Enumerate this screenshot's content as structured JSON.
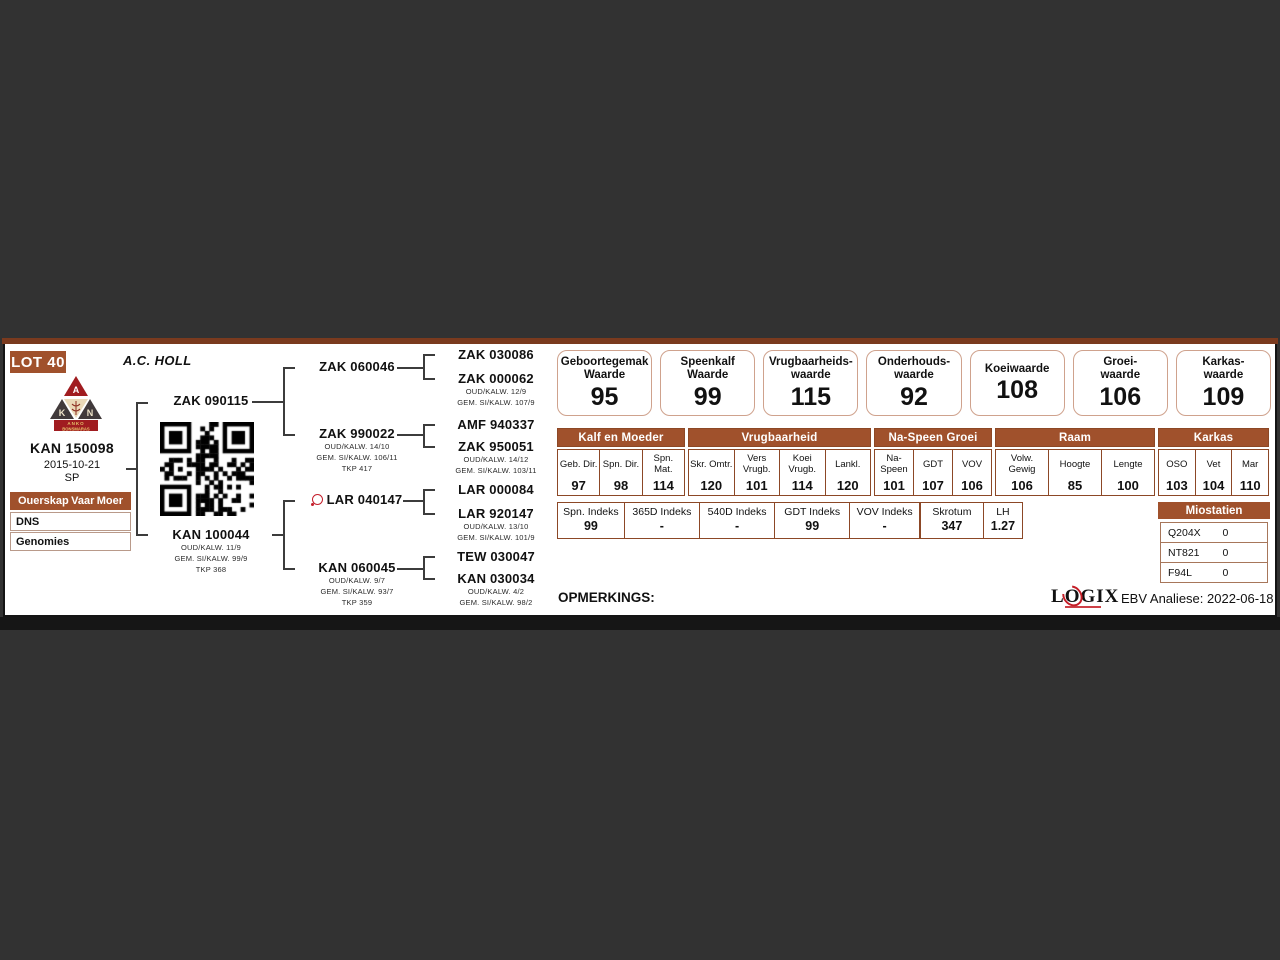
{
  "header": {
    "lot": "LOT 40",
    "owner": "A.C. HOLL"
  },
  "logo": {
    "letter_a": "A",
    "letter_k": "K",
    "letter_n": "N",
    "name_line1": "ANKO",
    "name_line2": "BONSMARAS"
  },
  "animal": {
    "id": "KAN 150098",
    "birth_date": "2015-10-21",
    "code": "SP"
  },
  "parentage": {
    "header_col1": "Ouerskap",
    "header_col2": "Vaar",
    "header_col3": "Moer",
    "rows": [
      {
        "label": "DNS"
      },
      {
        "label": "Genomies"
      }
    ]
  },
  "pedigree": {
    "sire": {
      "id": "ZAK 090115"
    },
    "dam": {
      "id": "KAN 100044",
      "details": [
        "OUD/KALW. 11/9",
        "GEM. SI/KALW. 99/9",
        "TKP 368"
      ]
    },
    "gen2": [
      {
        "id": "ZAK 060046"
      },
      {
        "id": "ZAK 990022",
        "details": [
          "OUD/KALW. 14/10",
          "GEM. SI/KALW. 106/11",
          "TKP 417"
        ]
      },
      {
        "id": "LAR 040147"
      },
      {
        "id": "KAN 060045",
        "details": [
          "OUD/KALW. 9/7",
          "GEM. SI/KALW. 93/7",
          "TKP 359"
        ]
      }
    ],
    "gen3": [
      {
        "id": "ZAK 030086"
      },
      {
        "id": "ZAK 000062",
        "details": [
          "OUD/KALW. 12/9",
          "GEM. SI/KALW. 107/9"
        ]
      },
      {
        "id": "AMF 940337"
      },
      {
        "id": "ZAK 950051",
        "details": [
          "OUD/KALW. 14/12",
          "GEM. SI/KALW. 103/11"
        ]
      },
      {
        "id": "LAR 000084"
      },
      {
        "id": "LAR 920147",
        "details": [
          "OUD/KALW. 13/10",
          "GEM. SI/KALW. 101/9"
        ]
      },
      {
        "id": "TEW 030047"
      },
      {
        "id": "KAN 030034",
        "details": [
          "OUD/KALW. 4/2",
          "GEM. SI/KALW. 98/2"
        ]
      }
    ]
  },
  "value_boxes": [
    {
      "line1": "Geboortegemak",
      "line2": "Waarde",
      "value": "95"
    },
    {
      "line1": "Speenkalf",
      "line2": "Waarde",
      "value": "99"
    },
    {
      "line1": "Vrugbaarheids-",
      "line2": "waarde",
      "value": "115"
    },
    {
      "line1": "Onderhouds-",
      "line2": "waarde",
      "value": "92"
    },
    {
      "line1": "Koeiwaarde",
      "line2": "",
      "value": "108"
    },
    {
      "line1": "Groei-",
      "line2": "waarde",
      "value": "106"
    },
    {
      "line1": "Karkas-",
      "line2": "waarde",
      "value": "109"
    }
  ],
  "ebv_table": {
    "groups": [
      {
        "name": "Kalf en Moeder",
        "columns": [
          {
            "label": "Geb. Dir.",
            "value": "97"
          },
          {
            "label": "Spn. Dir.",
            "value": "98"
          },
          {
            "label": "Spn. Mat.",
            "value": "114"
          }
        ]
      },
      {
        "name": "Vrugbaarheid",
        "columns": [
          {
            "label": "Skr. Omtr.",
            "value": "120"
          },
          {
            "label": "Vers Vrugb.",
            "value": "101"
          },
          {
            "label": "Koei Vrugb.",
            "value": "114"
          },
          {
            "label": "Lankl.",
            "value": "120"
          }
        ]
      },
      {
        "name": "Na-Speen Groei",
        "columns": [
          {
            "label": "Na- Speen",
            "value": "101"
          },
          {
            "label": "GDT",
            "value": "107"
          },
          {
            "label": "VOV",
            "value": "106"
          }
        ]
      },
      {
        "name": "Raam",
        "columns": [
          {
            "label": "Volw. Gewig",
            "value": "106"
          },
          {
            "label": "Hoogte",
            "value": "85"
          },
          {
            "label": "Lengte",
            "value": "100"
          }
        ]
      },
      {
        "name": "Karkas",
        "columns": [
          {
            "label": "OSO",
            "value": "103"
          },
          {
            "label": "Vet",
            "value": "104"
          },
          {
            "label": "Mar",
            "value": "110"
          }
        ]
      }
    ]
  },
  "index_table": {
    "cells": [
      {
        "label": "Spn. Indeks",
        "value": "99"
      },
      {
        "label": "365D Indeks",
        "value": "-"
      },
      {
        "label": "540D Indeks",
        "value": "-"
      },
      {
        "label": "GDT Indeks",
        "value": "99"
      },
      {
        "label": "VOV Indeks",
        "value": "-"
      },
      {
        "label": "Skrotum",
        "value": "347"
      },
      {
        "label": "LH",
        "value": "1.27"
      }
    ]
  },
  "miostatien": {
    "title": "Miostatien",
    "rows": [
      {
        "label": "Q204X",
        "value": "0"
      },
      {
        "label": "NT821",
        "value": "0"
      },
      {
        "label": "F94L",
        "value": "0"
      }
    ]
  },
  "footer": {
    "opmerkings": "OPMERKINGS:",
    "logix_l": "L",
    "logix_o": "O",
    "logix_gix": "GIX",
    "ebv_label": "EBV Analiese:",
    "ebv_date": "2022-06-18"
  }
}
